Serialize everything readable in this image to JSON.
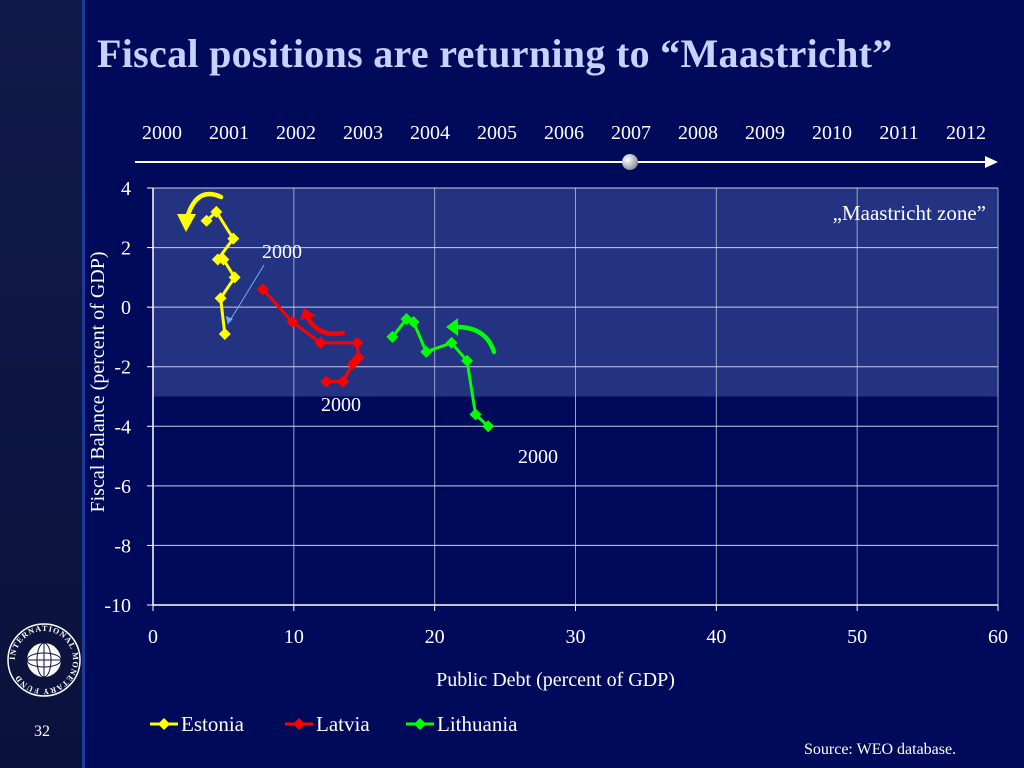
{
  "slide": {
    "title": "Fiscal positions are returning to “Maastricht”",
    "page_number": "32",
    "source": "Source: WEO database.",
    "logo_text": "INTERNATIONAL MONETARY FUND"
  },
  "timeline": {
    "years": [
      "2000",
      "2001",
      "2002",
      "2003",
      "2004",
      "2005",
      "2006",
      "2007",
      "2008",
      "2009",
      "2010",
      "2011",
      "2012"
    ],
    "current_year": "2007"
  },
  "chart_data": {
    "type": "line",
    "xlabel": "Public Debt (percent of GDP)",
    "ylabel": "Fiscal Balance (percent of GDP)",
    "xlim": [
      0,
      60
    ],
    "ylim": [
      -10,
      4
    ],
    "x_ticks": [
      "0",
      "10",
      "20",
      "30",
      "40",
      "50",
      "60"
    ],
    "y_ticks": [
      "4",
      "2",
      "0",
      "-2",
      "-4",
      "-6",
      "-8",
      "-10"
    ],
    "grid": true,
    "legend_position": "bottom",
    "zone": {
      "label": "„Maastricht zone”",
      "xrange": [
        0,
        60
      ],
      "yrange": [
        -3,
        4
      ],
      "color": "#2a3a8a"
    },
    "series": [
      {
        "name": "Estonia",
        "color": "#ffff00",
        "points": [
          [
            5.1,
            -0.9
          ],
          [
            4.8,
            0.3
          ],
          [
            5.8,
            1.0
          ],
          [
            5.0,
            1.6
          ],
          [
            4.6,
            1.6
          ],
          [
            5.7,
            2.3
          ],
          [
            4.5,
            3.2
          ],
          [
            3.8,
            2.9
          ]
        ]
      },
      {
        "name": "Latvia",
        "color": "#ff0000",
        "points": [
          [
            7.8,
            0.6
          ],
          [
            9.9,
            -0.5
          ],
          [
            11.9,
            -1.2
          ],
          [
            14.5,
            -1.2
          ],
          [
            14.6,
            -1.7
          ],
          [
            14.2,
            -1.9
          ],
          [
            13.5,
            -2.5
          ],
          [
            12.3,
            -2.5
          ]
        ]
      },
      {
        "name": "Lithuania",
        "color": "#00ff00",
        "points": [
          [
            23.8,
            -4.0
          ],
          [
            22.9,
            -3.6
          ],
          [
            22.3,
            -1.8
          ],
          [
            21.2,
            -1.2
          ],
          [
            19.4,
            -1.5
          ],
          [
            18.5,
            -0.5
          ],
          [
            18.0,
            -0.4
          ],
          [
            17.0,
            -1.0
          ]
        ]
      }
    ],
    "annotations": [
      {
        "text": "2000",
        "series": "Estonia"
      },
      {
        "text": "2000",
        "series": "Latvia"
      },
      {
        "text": "2000",
        "series": "Lithuania"
      }
    ]
  }
}
